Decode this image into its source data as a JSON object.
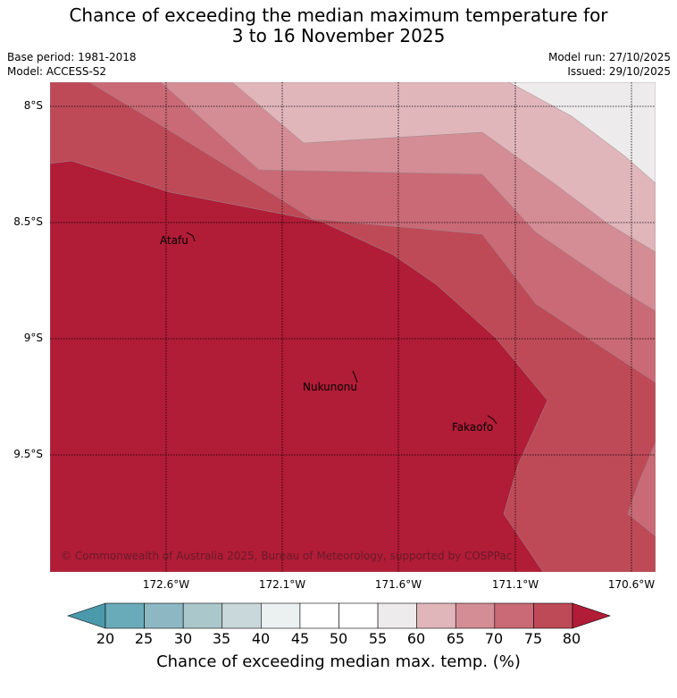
{
  "header": {
    "title_line1": "Chance of exceeding the median maximum temperature for",
    "title_line2": "3 to 16 November 2025",
    "base_period": "Base period: 1981-2018",
    "model": "Model: ACCESS-S2",
    "model_run": "Model run: 27/10/2025",
    "issued": "Issued: 29/10/2025"
  },
  "map": {
    "lat_labels": [
      "8°S",
      "8.5°S",
      "9°S",
      "9.5°S"
    ],
    "lon_labels": [
      "172.6°W",
      "172.1°W",
      "171.6°W",
      "171.1°W",
      "170.6°W"
    ],
    "places": [
      {
        "name": "Atafu"
      },
      {
        "name": "Nukunonu"
      },
      {
        "name": "Fakaofo"
      }
    ],
    "copyright": "© Commonwealth of Australia 2025, Bureau of Meteorology, supported by COSPPac"
  },
  "colorbar": {
    "ticks": [
      "20",
      "25",
      "30",
      "35",
      "40",
      "45",
      "50",
      "55",
      "60",
      "65",
      "70",
      "75",
      "80"
    ],
    "colors": [
      "#6aabb9",
      "#8db8c3",
      "#aac7cb",
      "#c9d8da",
      "#ebf0f1",
      "#ffffff",
      "#ffffff",
      "#eeebec",
      "#e0b6bb",
      "#d48d95",
      "#c96a76",
      "#be4a58"
    ],
    "low_color": "#4a9aab",
    "high_color": "#b11c37",
    "title": "Chance of exceeding median max. temp. (%)"
  }
}
